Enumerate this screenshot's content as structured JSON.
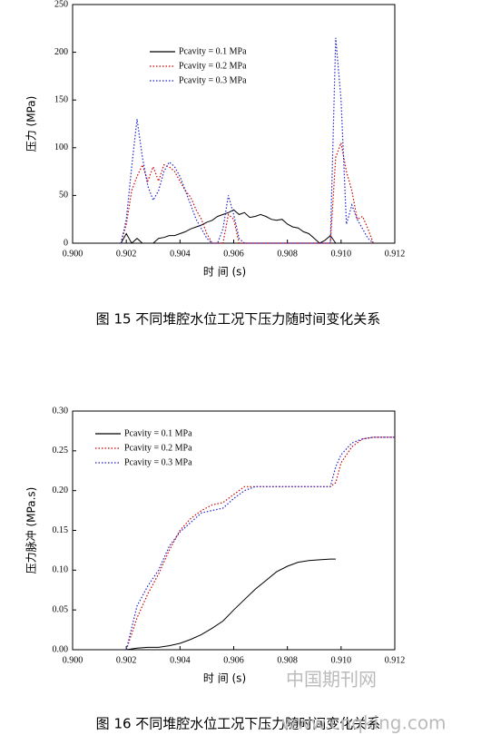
{
  "chart_data": [
    {
      "type": "line",
      "caption": "图 15 不同堆腔水位工况下压力随时间变化关系",
      "x_label": "时 间 (s)",
      "y_label": "压力 (MPa)",
      "xlim": [
        0.9,
        0.912
      ],
      "ylim": [
        0,
        250
      ],
      "xticks": [
        {
          "value": 0.9,
          "label": "0.900"
        },
        {
          "value": 0.902,
          "label": "0.902"
        },
        {
          "value": 0.904,
          "label": "0.904"
        },
        {
          "value": 0.906,
          "label": "0.906"
        },
        {
          "value": 0.908,
          "label": "0.908"
        },
        {
          "value": 0.91,
          "label": "0.910"
        },
        {
          "value": 0.912,
          "label": "0.912"
        }
      ],
      "yticks": [
        0,
        50,
        100,
        150,
        200,
        250
      ],
      "legend": "upper left",
      "x": [
        0.9018,
        0.902,
        0.9022,
        0.9024,
        0.9026,
        0.9028,
        0.903,
        0.9032,
        0.9034,
        0.9036,
        0.9038,
        0.904,
        0.9042,
        0.9044,
        0.9046,
        0.9048,
        0.905,
        0.9052,
        0.9054,
        0.9056,
        0.9058,
        0.906,
        0.9062,
        0.9064,
        0.9066,
        0.9068,
        0.907,
        0.9072,
        0.9074,
        0.9076,
        0.9078,
        0.908,
        0.9082,
        0.9084,
        0.9086,
        0.9088,
        0.909,
        0.9092,
        0.9094,
        0.9096,
        0.9098,
        0.91,
        0.9102,
        0.9104,
        0.9106,
        0.9108,
        0.911,
        0.9112
      ],
      "series": [
        {
          "name": "Pcavity = 0.1 MPa",
          "color": "#000000",
          "linestyle": "solid",
          "values": [
            0,
            10,
            0,
            5,
            0,
            0,
            0,
            5,
            6,
            8,
            8,
            10,
            12,
            15,
            17,
            19,
            22,
            24,
            28,
            30,
            32,
            35,
            30,
            32,
            27,
            28,
            30,
            28,
            25,
            24,
            25,
            20,
            17,
            16,
            12,
            10,
            5,
            0,
            3,
            8,
            0,
            null,
            null,
            null,
            null,
            null,
            null,
            null
          ]
        },
        {
          "name": "Pcavity = 0.2 MPa",
          "color": "#cc0000",
          "linestyle": "dotted",
          "values": [
            0,
            20,
            55,
            70,
            82,
            65,
            80,
            65,
            82,
            80,
            75,
            65,
            55,
            48,
            35,
            25,
            10,
            0,
            0,
            0,
            30,
            25,
            0,
            0,
            0,
            0,
            0,
            0,
            0,
            0,
            0,
            0,
            0,
            0,
            0,
            0,
            0,
            0,
            0,
            0,
            90,
            105,
            75,
            55,
            25,
            28,
            15,
            0
          ]
        },
        {
          "name": "Pcavity = 0.3 MPa",
          "color": "#2222cc",
          "linestyle": "dotted",
          "values": [
            0,
            25,
            80,
            130,
            90,
            60,
            45,
            55,
            75,
            85,
            80,
            70,
            55,
            40,
            25,
            15,
            5,
            0,
            0,
            15,
            50,
            30,
            5,
            0,
            0,
            0,
            0,
            0,
            0,
            0,
            0,
            0,
            0,
            0,
            0,
            0,
            0,
            0,
            0,
            0,
            215,
            150,
            20,
            40,
            25,
            15,
            5,
            0
          ]
        }
      ]
    },
    {
      "type": "line",
      "caption": "图 16 不同堆腔水位工况下压力随时间变化关系",
      "x_label": "时 间 (s)",
      "y_label": "压力脉冲 (MPa.s)",
      "xlim": [
        0.9,
        0.912
      ],
      "ylim": [
        0,
        0.3
      ],
      "xticks": [
        {
          "value": 0.9,
          "label": "0.900"
        },
        {
          "value": 0.902,
          "label": "0.902"
        },
        {
          "value": 0.904,
          "label": "0.904"
        },
        {
          "value": 0.906,
          "label": "0.906"
        },
        {
          "value": 0.908,
          "label": "0.908"
        },
        {
          "value": 0.91,
          "label": "0.910"
        },
        {
          "value": 0.912,
          "label": "0.912"
        }
      ],
      "yticks": [
        {
          "value": 0,
          "label": "0.00"
        },
        {
          "value": 0.05,
          "label": "0.05"
        },
        {
          "value": 0.1,
          "label": "0.10"
        },
        {
          "value": 0.15,
          "label": "0.15"
        },
        {
          "value": 0.2,
          "label": "0.20"
        },
        {
          "value": 0.25,
          "label": "0.25"
        },
        {
          "value": 0.3,
          "label": "0.30"
        }
      ],
      "legend": "upper left",
      "x": [
        0.902,
        0.9024,
        0.9028,
        0.9032,
        0.9036,
        0.904,
        0.9044,
        0.9048,
        0.9052,
        0.9056,
        0.906,
        0.9064,
        0.9068,
        0.9072,
        0.9076,
        0.908,
        0.9084,
        0.9088,
        0.9092,
        0.9096,
        0.9098,
        0.91,
        0.9104,
        0.9108,
        0.9112,
        0.9116,
        0.912
      ],
      "series": [
        {
          "name": "Pcavity = 0.1 MPa",
          "color": "#000000",
          "linestyle": "solid",
          "values": [
            0,
            0.002,
            0.003,
            0.003,
            0.005,
            0.008,
            0.013,
            0.019,
            0.027,
            0.036,
            0.05,
            0.063,
            0.076,
            0.087,
            0.098,
            0.105,
            0.11,
            0.112,
            0.113,
            0.114,
            0.114,
            null,
            null,
            null,
            null,
            null,
            null
          ]
        },
        {
          "name": "Pcavity = 0.2 MPa",
          "color": "#cc0000",
          "linestyle": "dotted",
          "values": [
            0,
            0.04,
            0.07,
            0.095,
            0.125,
            0.15,
            0.165,
            0.175,
            0.182,
            0.185,
            0.195,
            0.205,
            0.205,
            0.205,
            0.205,
            0.205,
            0.205,
            0.205,
            0.205,
            0.205,
            0.21,
            0.235,
            0.255,
            0.265,
            0.267,
            0.267,
            0.267
          ]
        },
        {
          "name": "Pcavity = 0.3 MPa",
          "color": "#2222cc",
          "linestyle": "dotted",
          "values": [
            0,
            0.055,
            0.08,
            0.1,
            0.13,
            0.148,
            0.16,
            0.172,
            0.175,
            0.178,
            0.19,
            0.2,
            0.205,
            0.205,
            0.205,
            0.205,
            0.205,
            0.205,
            0.205,
            0.205,
            0.23,
            0.245,
            0.26,
            0.265,
            0.267,
            0.267,
            0.267
          ]
        }
      ]
    }
  ],
  "watermark": {
    "site": "中国期刊网",
    "url": "www.cnqking.com"
  }
}
